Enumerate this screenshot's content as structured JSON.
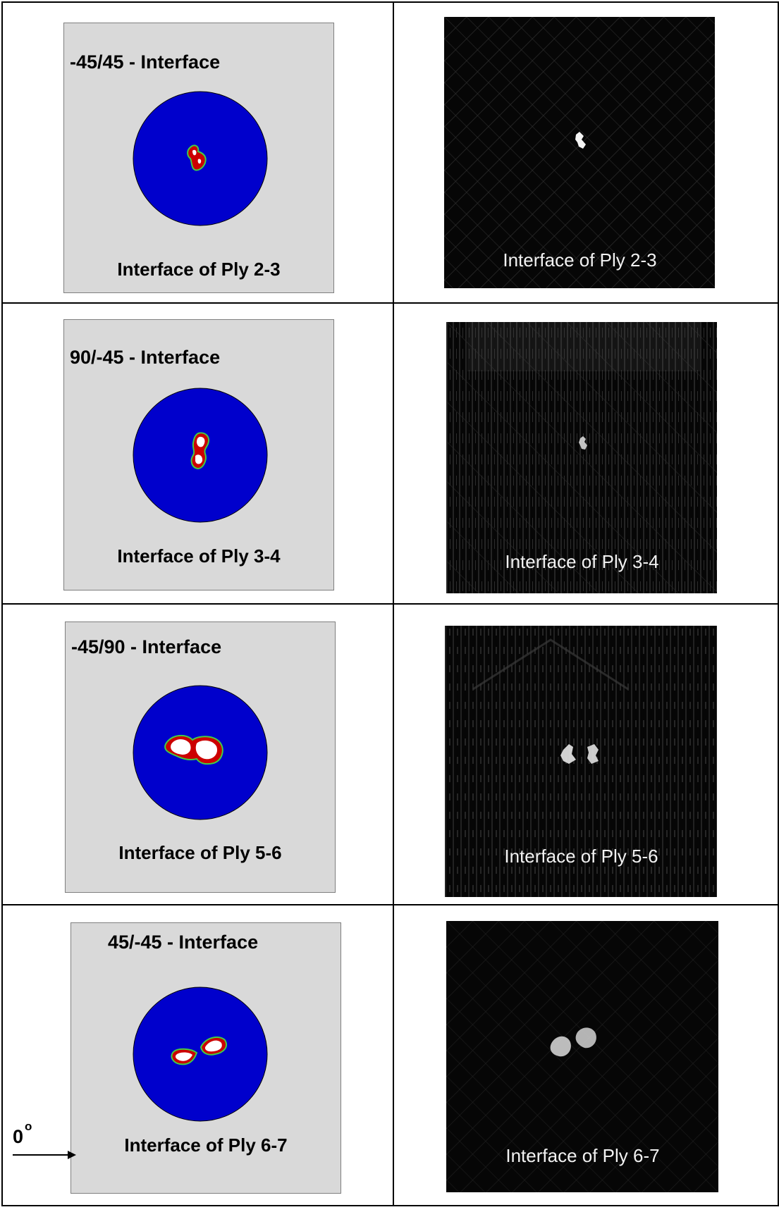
{
  "rows": [
    {
      "sim_title": "-45/45 - Interface",
      "sim_caption": "Interface of Ply 2-3",
      "ct_caption": "Interface of Ply 2-3"
    },
    {
      "sim_title": "90/-45 - Interface",
      "sim_caption": "Interface of Ply 3-4",
      "ct_caption": "Interface of Ply 3-4"
    },
    {
      "sim_title": "-45/90 - Interface",
      "sim_caption": "Interface of Ply 5-6",
      "ct_caption": "Interface of Ply 5-6"
    },
    {
      "sim_title": "45/-45 - Interface",
      "sim_caption": "Interface of Ply 6-7",
      "ct_caption": "Interface of Ply 6-7"
    }
  ],
  "orientation": {
    "label": "0",
    "superscript": "o"
  },
  "colors": {
    "disc": "#0000cc",
    "damage_border": "#cc0000",
    "damage_fringe": "#44cc44",
    "damage_core": "#ffffff",
    "panel_bg": "#d9d9d9",
    "ct_bg": "#060606"
  }
}
